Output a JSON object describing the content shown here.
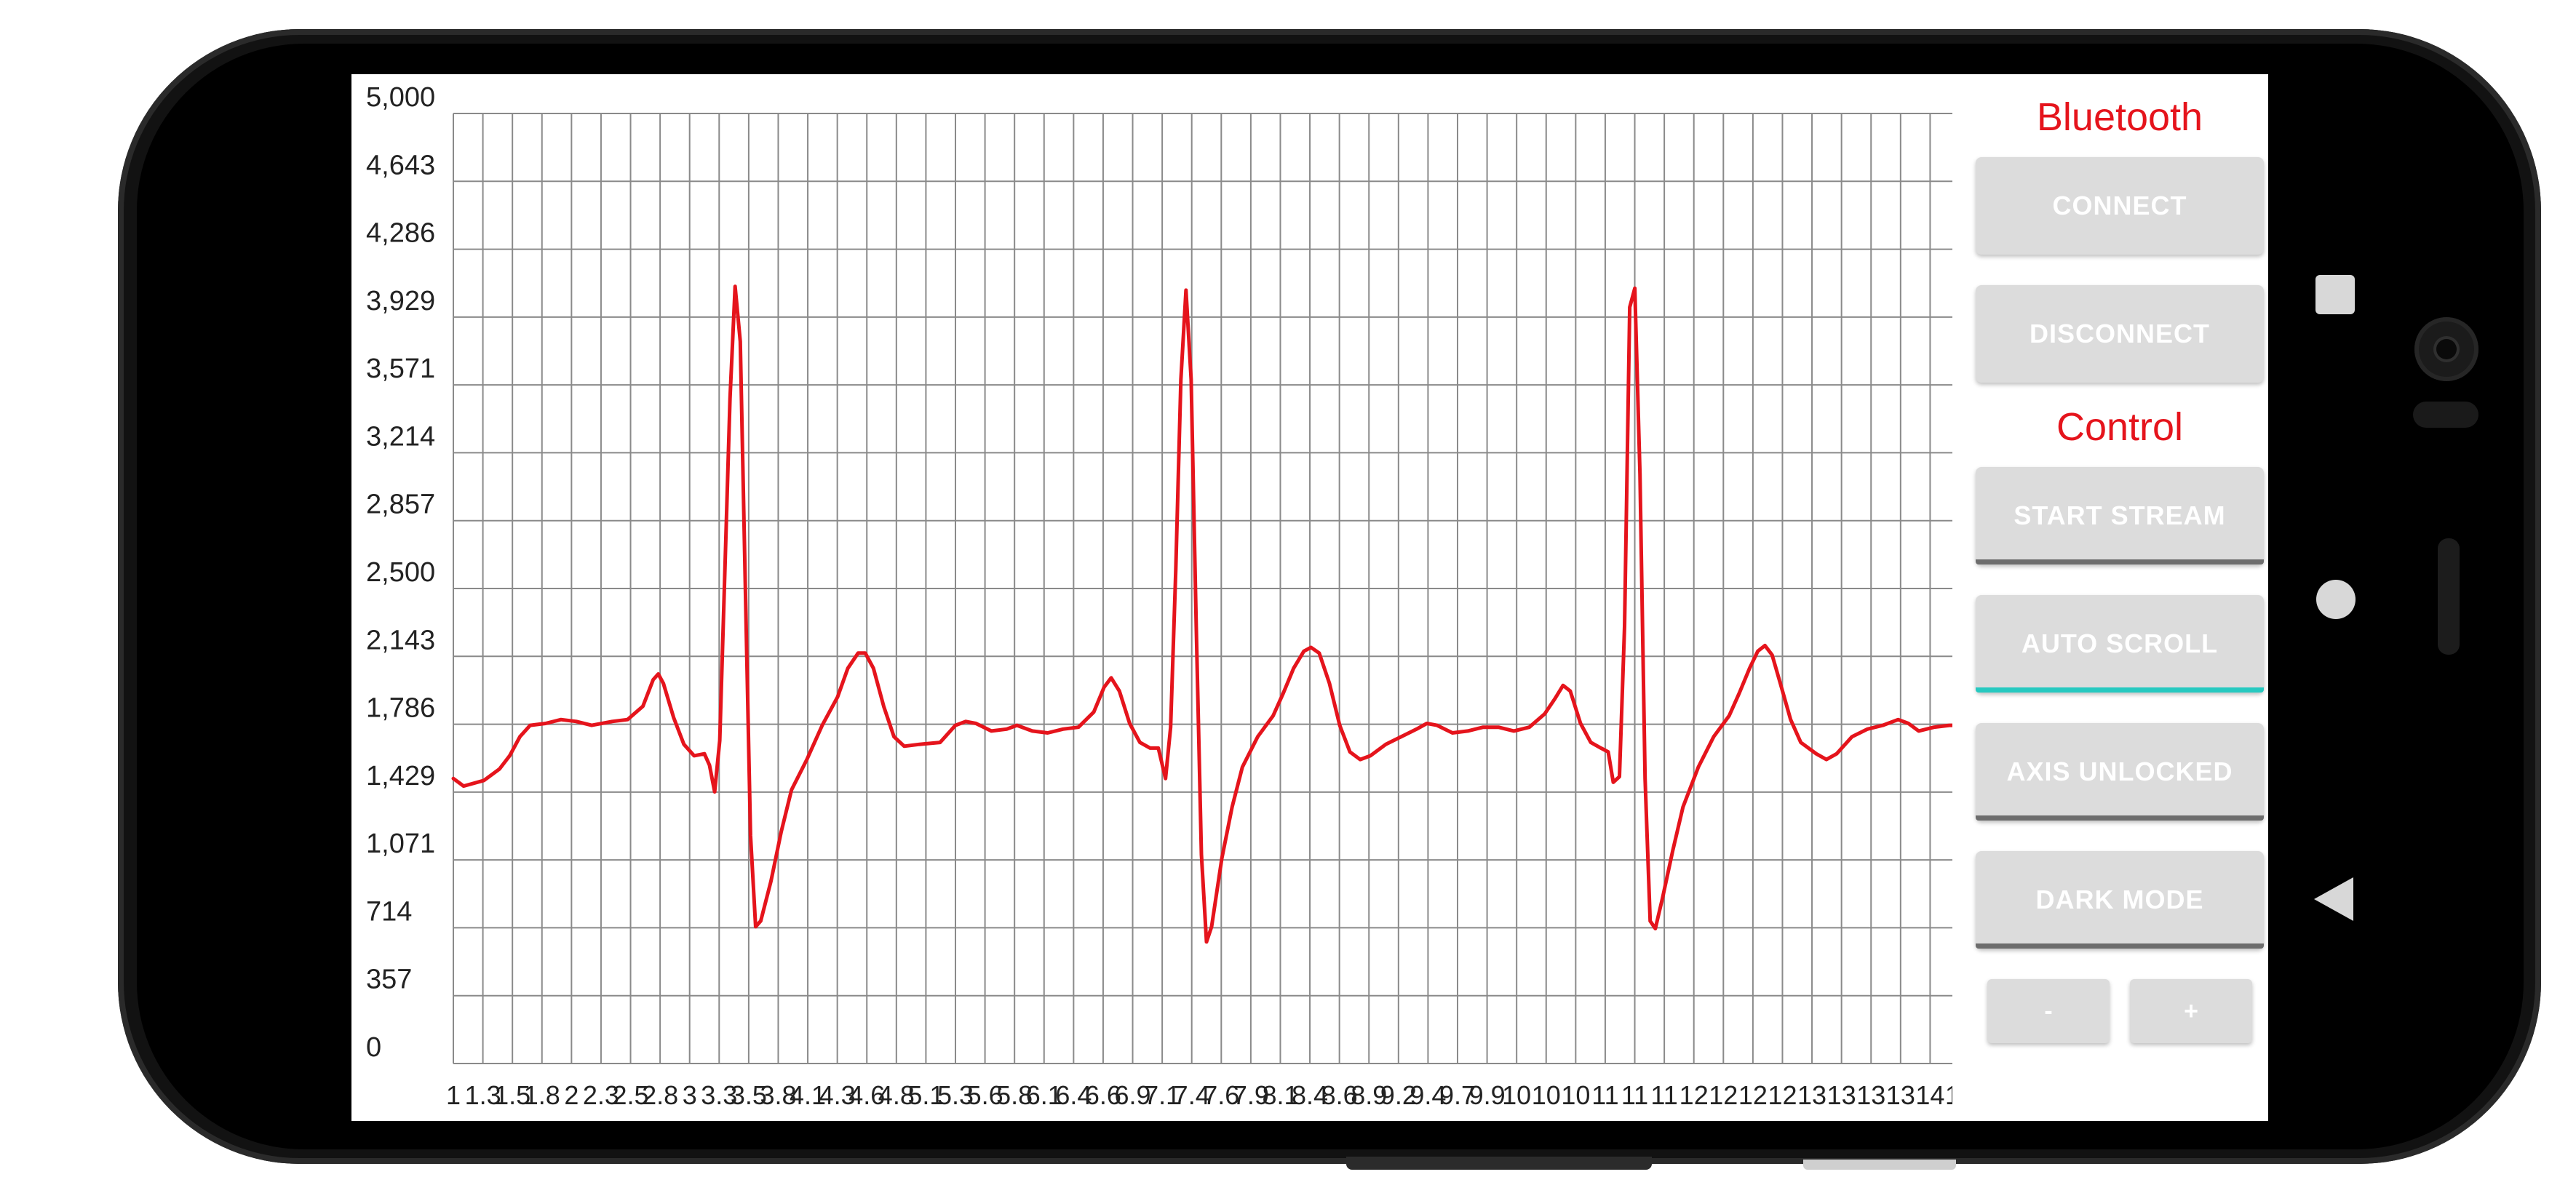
{
  "bluetooth": {
    "title": "Bluetooth",
    "connect_label": "CONNECT",
    "disconnect_label": "DISCONNECT"
  },
  "control": {
    "title": "Control",
    "start_stream_label": "START STREAM",
    "auto_scroll_label": "AUTO SCROLL",
    "axis_unlocked_label": "AXIS UNLOCKED",
    "dark_mode_label": "DARK MODE",
    "minus_label": "-",
    "plus_label": "+",
    "toggles": {
      "start_stream": false,
      "auto_scroll": true,
      "axis_unlocked": false,
      "dark_mode": false
    }
  },
  "colors": {
    "accent_red": "#e5141c",
    "toggle_on": "#26c9c0",
    "toggle_off": "#6d6d6d",
    "button_bg": "#dcdcdc",
    "grid": "#8a8a8a"
  },
  "nav_icons": [
    "recents-square-icon",
    "home-circle-icon",
    "back-triangle-icon"
  ],
  "chart_data": {
    "type": "line",
    "title": "",
    "xlabel": "",
    "ylabel": "",
    "ylim": [
      0,
      5000
    ],
    "xlim": [
      0,
      14
    ],
    "grid": true,
    "y_ticks": [
      "0",
      "357",
      "714",
      "1,071",
      "1,429",
      "1,786",
      "2,143",
      "2,500",
      "2,857",
      "3,214",
      "3,571",
      "3,929",
      "4,286",
      "4,643",
      "5,000"
    ],
    "x_tick_labels": [
      "1",
      "1.3",
      "1.5",
      "1.8",
      "2",
      "2.3",
      "2.5",
      "2.8",
      "3",
      "3.3",
      "3.5",
      "3.8",
      "4.1",
      "4.3",
      "4.6",
      "4.8",
      "5.1",
      "5.3",
      "5.6",
      "5.8",
      "6.1",
      "6.4",
      "6.6",
      "6.9",
      "7.1",
      "7.4",
      "7.6",
      "7.9",
      "8.1",
      "8.4",
      "8.6",
      "8.9",
      "9.2",
      "9.4",
      "9.7",
      "9.9",
      "10",
      "10",
      "10",
      "11",
      "11",
      "11",
      "12",
      "12",
      "12",
      "12",
      "13",
      "13",
      "13",
      "13",
      "14",
      "14"
    ],
    "series": [
      {
        "color": "#e5141c",
        "points": [
          [
            0.0,
            1500
          ],
          [
            0.1,
            1460
          ],
          [
            0.3,
            1490
          ],
          [
            0.45,
            1550
          ],
          [
            0.55,
            1620
          ],
          [
            0.65,
            1720
          ],
          [
            0.75,
            1780
          ],
          [
            0.9,
            1790
          ],
          [
            1.05,
            1810
          ],
          [
            1.2,
            1800
          ],
          [
            1.35,
            1780
          ],
          [
            1.55,
            1800
          ],
          [
            1.7,
            1810
          ],
          [
            1.85,
            1880
          ],
          [
            1.95,
            2020
          ],
          [
            2.0,
            2050
          ],
          [
            2.05,
            2000
          ],
          [
            2.15,
            1820
          ],
          [
            2.25,
            1680
          ],
          [
            2.35,
            1620
          ],
          [
            2.45,
            1630
          ],
          [
            2.5,
            1570
          ],
          [
            2.55,
            1430
          ],
          [
            2.6,
            1700
          ],
          [
            2.65,
            2600
          ],
          [
            2.7,
            3500
          ],
          [
            2.75,
            4090
          ],
          [
            2.8,
            3800
          ],
          [
            2.85,
            2500
          ],
          [
            2.9,
            1200
          ],
          [
            2.95,
            720
          ],
          [
            3.0,
            750
          ],
          [
            3.1,
            960
          ],
          [
            3.2,
            1220
          ],
          [
            3.3,
            1440
          ],
          [
            3.45,
            1600
          ],
          [
            3.6,
            1780
          ],
          [
            3.75,
            1930
          ],
          [
            3.85,
            2080
          ],
          [
            3.95,
            2160
          ],
          [
            4.02,
            2160
          ],
          [
            4.1,
            2080
          ],
          [
            4.2,
            1880
          ],
          [
            4.3,
            1720
          ],
          [
            4.4,
            1670
          ],
          [
            4.55,
            1680
          ],
          [
            4.75,
            1690
          ],
          [
            4.9,
            1780
          ],
          [
            5.0,
            1800
          ],
          [
            5.1,
            1790
          ],
          [
            5.25,
            1750
          ],
          [
            5.4,
            1760
          ],
          [
            5.5,
            1780
          ],
          [
            5.65,
            1750
          ],
          [
            5.8,
            1740
          ],
          [
            5.95,
            1760
          ],
          [
            6.1,
            1770
          ],
          [
            6.25,
            1850
          ],
          [
            6.35,
            1980
          ],
          [
            6.42,
            2030
          ],
          [
            6.5,
            1960
          ],
          [
            6.6,
            1790
          ],
          [
            6.7,
            1690
          ],
          [
            6.8,
            1660
          ],
          [
            6.88,
            1660
          ],
          [
            6.95,
            1500
          ],
          [
            7.0,
            1770
          ],
          [
            7.05,
            2600
          ],
          [
            7.1,
            3600
          ],
          [
            7.15,
            4070
          ],
          [
            7.2,
            3600
          ],
          [
            7.25,
            2300
          ],
          [
            7.3,
            1100
          ],
          [
            7.35,
            640
          ],
          [
            7.4,
            720
          ],
          [
            7.5,
            1080
          ],
          [
            7.6,
            1350
          ],
          [
            7.7,
            1560
          ],
          [
            7.85,
            1720
          ],
          [
            8.0,
            1830
          ],
          [
            8.1,
            1950
          ],
          [
            8.2,
            2080
          ],
          [
            8.3,
            2170
          ],
          [
            8.37,
            2190
          ],
          [
            8.45,
            2160
          ],
          [
            8.55,
            2000
          ],
          [
            8.65,
            1780
          ],
          [
            8.75,
            1640
          ],
          [
            8.85,
            1600
          ],
          [
            8.95,
            1620
          ],
          [
            9.1,
            1680
          ],
          [
            9.25,
            1720
          ],
          [
            9.4,
            1760
          ],
          [
            9.5,
            1790
          ],
          [
            9.6,
            1780
          ],
          [
            9.75,
            1740
          ],
          [
            9.9,
            1750
          ],
          [
            10.05,
            1770
          ],
          [
            10.2,
            1770
          ],
          [
            10.35,
            1750
          ],
          [
            10.5,
            1770
          ],
          [
            10.65,
            1840
          ],
          [
            10.75,
            1920
          ],
          [
            10.83,
            1990
          ],
          [
            10.9,
            1960
          ],
          [
            11.0,
            1790
          ],
          [
            11.1,
            1690
          ],
          [
            11.2,
            1660
          ],
          [
            11.27,
            1640
          ],
          [
            11.32,
            1480
          ],
          [
            11.38,
            1510
          ],
          [
            11.43,
            2300
          ],
          [
            11.48,
            3980
          ],
          [
            11.53,
            4080
          ],
          [
            11.58,
            3100
          ],
          [
            11.63,
            1500
          ],
          [
            11.68,
            750
          ],
          [
            11.73,
            710
          ],
          [
            11.8,
            870
          ],
          [
            11.9,
            1120
          ],
          [
            12.0,
            1350
          ],
          [
            12.15,
            1560
          ],
          [
            12.3,
            1720
          ],
          [
            12.45,
            1830
          ],
          [
            12.55,
            1950
          ],
          [
            12.65,
            2080
          ],
          [
            12.73,
            2170
          ],
          [
            12.8,
            2200
          ],
          [
            12.87,
            2150
          ],
          [
            12.95,
            2000
          ],
          [
            13.05,
            1810
          ],
          [
            13.15,
            1690
          ],
          [
            13.3,
            1630
          ],
          [
            13.4,
            1600
          ],
          [
            13.5,
            1630
          ],
          [
            13.65,
            1720
          ],
          [
            13.8,
            1760
          ],
          [
            13.95,
            1780
          ],
          [
            14.1,
            1810
          ],
          [
            14.2,
            1790
          ],
          [
            14.3,
            1750
          ],
          [
            14.45,
            1770
          ],
          [
            14.6,
            1780
          ],
          [
            14.7,
            1780
          ]
        ]
      }
    ]
  }
}
